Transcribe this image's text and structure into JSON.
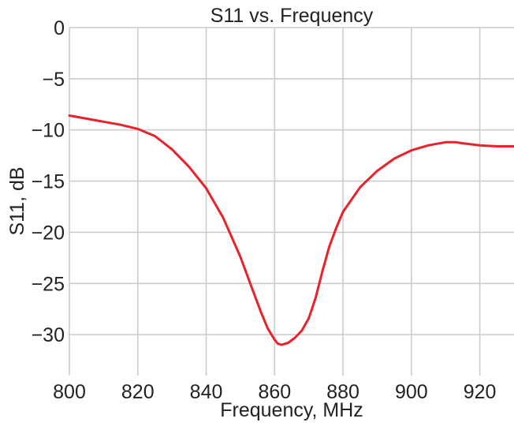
{
  "chart_data": {
    "type": "line",
    "title": "S11 vs. Frequency",
    "xlabel": "Frequency, MHz",
    "ylabel": "S11, dB",
    "xlim": [
      800,
      930
    ],
    "ylim": [
      -34,
      0
    ],
    "xticks": [
      800,
      820,
      840,
      860,
      880,
      900,
      920
    ],
    "yticks": [
      0,
      -5,
      -10,
      -15,
      -20,
      -25,
      -30
    ],
    "ytick_labels": [
      "0",
      "−5",
      "−10",
      "−15",
      "−20",
      "−25",
      "−30"
    ],
    "grid": true,
    "line_color": "#e8212a",
    "grid_color": "#cccccc",
    "series": [
      {
        "x": [
          800,
          805,
          810,
          815,
          820,
          825,
          830,
          835,
          840,
          845,
          850,
          853,
          856,
          858,
          860,
          861,
          862,
          863,
          864,
          866,
          868,
          870,
          872,
          874,
          876,
          878,
          880,
          885,
          890,
          895,
          900,
          905,
          910,
          913,
          915,
          920,
          925,
          930
        ],
        "y": [
          -8.6,
          -8.9,
          -9.2,
          -9.5,
          -9.9,
          -10.6,
          -11.9,
          -13.6,
          -15.7,
          -18.6,
          -22.4,
          -25.1,
          -27.8,
          -29.4,
          -30.5,
          -30.9,
          -31.0,
          -30.9,
          -30.8,
          -30.3,
          -29.6,
          -28.4,
          -26.4,
          -23.8,
          -21.4,
          -19.6,
          -18.0,
          -15.6,
          -14.0,
          -12.8,
          -12.0,
          -11.5,
          -11.2,
          -11.2,
          -11.3,
          -11.5,
          -11.6,
          -11.6
        ]
      }
    ]
  }
}
